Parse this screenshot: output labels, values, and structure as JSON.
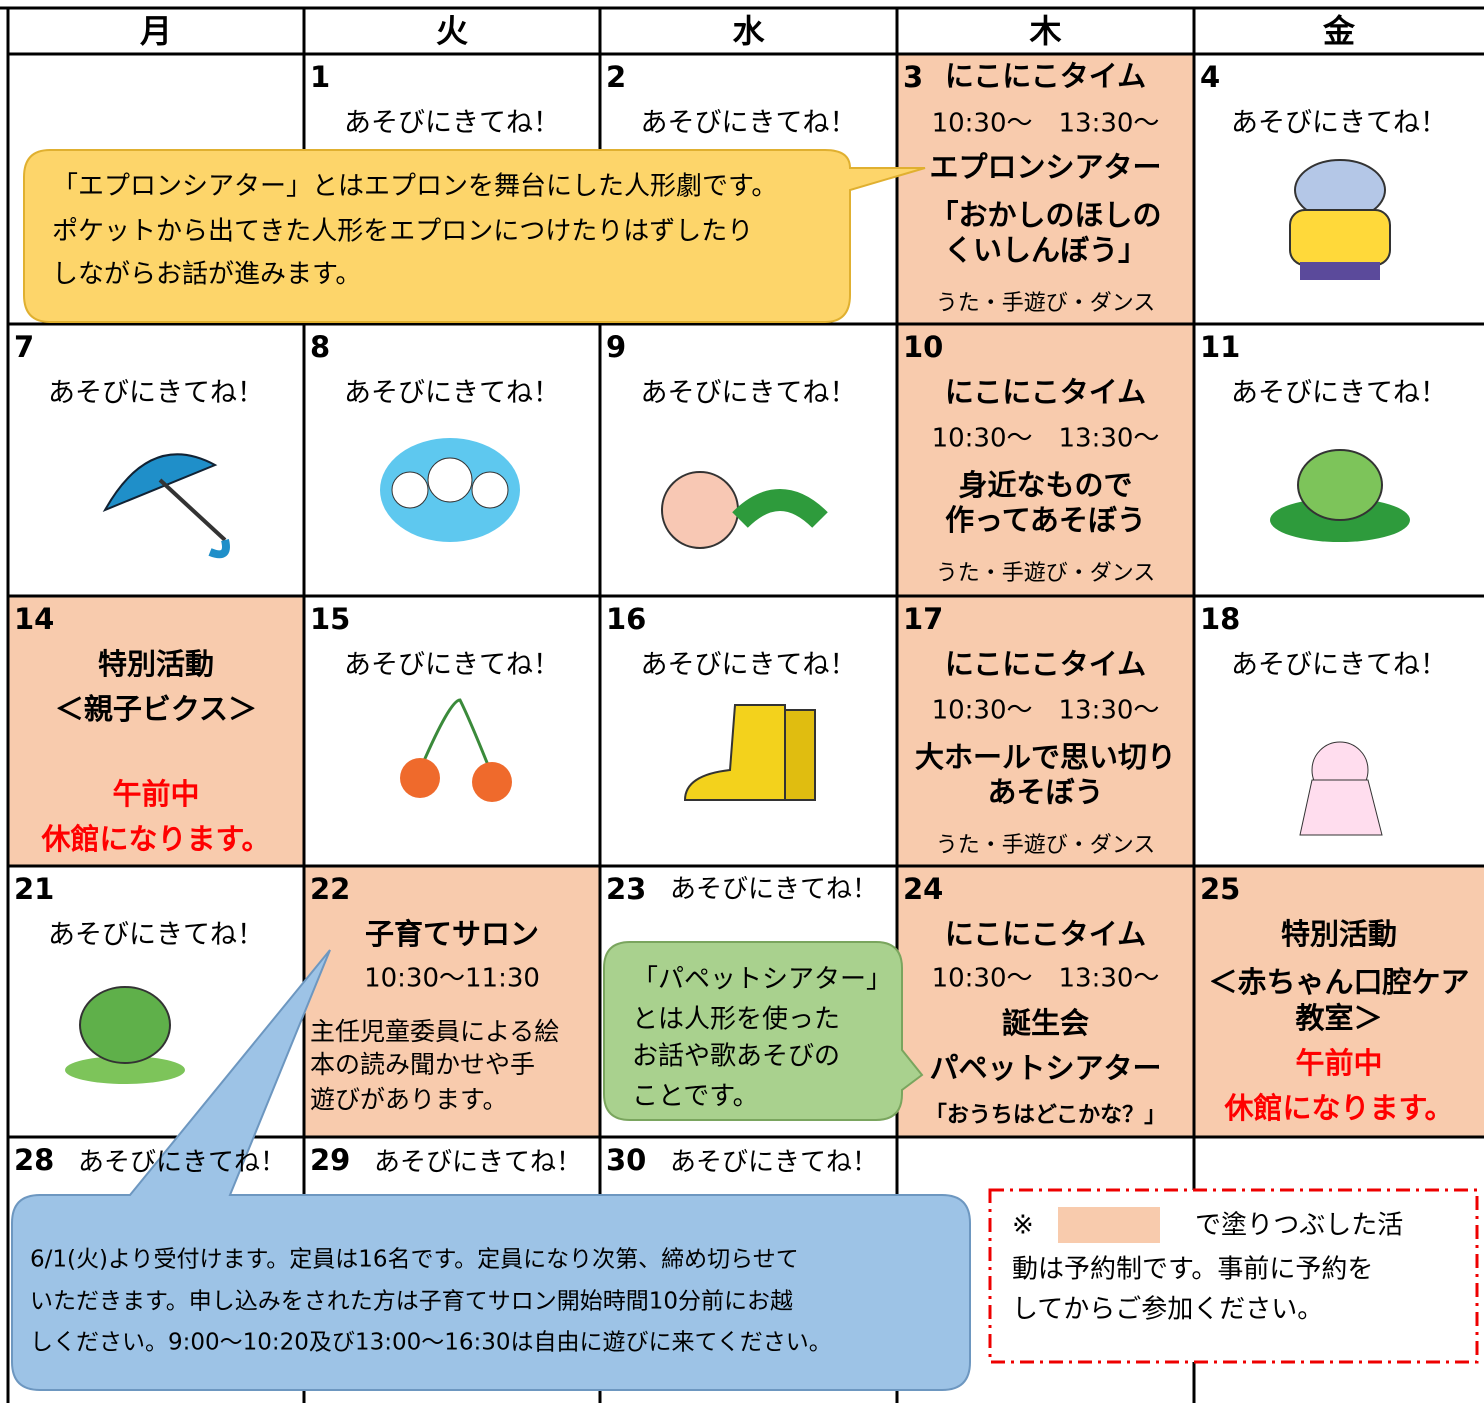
{
  "days": [
    "月",
    "火",
    "水",
    "木",
    "金"
  ],
  "cells": [
    {
      "date": "1",
      "lines": [
        "あそびにきてね！"
      ]
    },
    {
      "date": "2",
      "lines": [
        "あそびにきてね！"
      ]
    },
    {
      "date": "3",
      "lines": [
        "にこにこタイム",
        "10:30〜　13:30〜",
        "エプロンシアター",
        "「おかしのほしの",
        "くいしんぼう」",
        "うた・手遊び・ダンス"
      ]
    },
    {
      "date": "4",
      "lines": [
        "あそびにきてね！"
      ]
    },
    {
      "date": "7",
      "lines": [
        "あそびにきてね！"
      ]
    },
    {
      "date": "8",
      "lines": [
        "あそびにきてね！"
      ]
    },
    {
      "date": "9",
      "lines": [
        "あそびにきてね！"
      ]
    },
    {
      "date": "10",
      "lines": [
        "にこにこタイム",
        "10:30〜　13:30〜",
        "身近なもので",
        "作ってあそぼう",
        "うた・手遊び・ダンス"
      ]
    },
    {
      "date": "11",
      "lines": [
        "あそびにきてね！"
      ]
    },
    {
      "date": "14",
      "lines": [
        "特別活動",
        "＜親子ビクス＞",
        "午前中",
        "休館になります。"
      ]
    },
    {
      "date": "15",
      "lines": [
        "あそびにきてね！"
      ]
    },
    {
      "date": "16",
      "lines": [
        "あそびにきてね！"
      ]
    },
    {
      "date": "17",
      "lines": [
        "にこにこタイム",
        "10:30〜　13:30〜",
        "大ホールで思い切り",
        "あそぼう",
        "うた・手遊び・ダンス"
      ]
    },
    {
      "date": "18",
      "lines": [
        "あそびにきてね！"
      ]
    },
    {
      "date": "21",
      "lines": [
        "あそびにきてね！"
      ]
    },
    {
      "date": "22",
      "lines": [
        "子育てサロン",
        "10:30〜11:30",
        "主任児童委員による絵",
        "本の読み聞かせや手",
        "遊びがあります。"
      ]
    },
    {
      "date": "23",
      "lines": [
        "あそびにきてね！"
      ]
    },
    {
      "date": "24",
      "lines": [
        "にこにこタイム",
        "10:30〜　13:30〜",
        "誕生会",
        "パペットシアター",
        "「おうちはどこかな？」"
      ]
    },
    {
      "date": "25",
      "lines": [
        "特別活動",
        "＜赤ちゃん口腔ケア",
        "教室＞",
        "午前中",
        "休館になります。"
      ]
    },
    {
      "date": "28",
      "lines": [
        "あそびにきてね！"
      ]
    },
    {
      "date": "29",
      "lines": [
        "あそびにきてね！"
      ]
    },
    {
      "date": "30",
      "lines": [
        "あそびにきてね！"
      ]
    }
  ],
  "callouts": {
    "apron": [
      "「エプロンシアター」とはエプロンを舞台にした人形劇です。",
      "ポケットから出てきた人形をエプロンにつけたりはずしたり",
      "しながらお話が進みます。"
    ],
    "puppet": [
      "「パペットシアター」",
      "とは人形を使った",
      "お話や歌あそびの",
      "ことです。"
    ],
    "salon": [
      "6/1(火)より受付けます。定員は16名です。定員になり次第、締め切らせて",
      "いただきます。申し込みをされた方は子育てサロン開始時間10分前にお越",
      "しください。9:00〜10:20及び13:00〜16:30は自由に遊びに来てください。"
    ],
    "note": [
      "※",
      "で塗りつぶした活",
      "動は予約制です。事前に予約を",
      "してからご参加ください。"
    ]
  }
}
